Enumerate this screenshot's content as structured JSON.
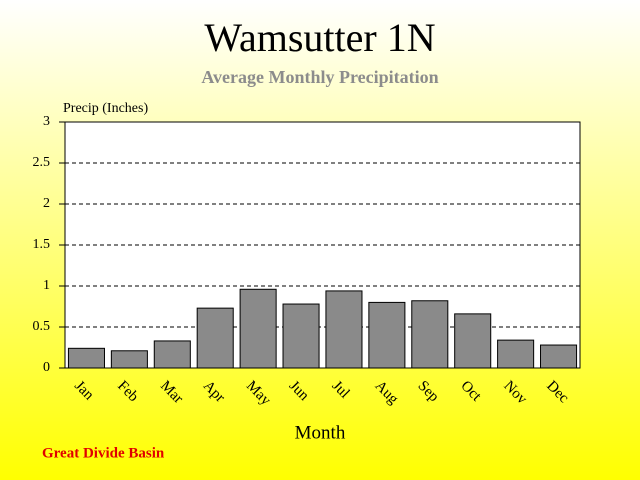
{
  "chart_data": {
    "type": "bar",
    "title": "Wamsutter 1N",
    "subtitle": "Average Monthly Precipitation",
    "y_label": "Precip (Inches)",
    "x_label": "Month",
    "annotation": "Great Divide Basin",
    "categories": [
      "Jan",
      "Feb",
      "Mar",
      "Apr",
      "May",
      "Jun",
      "Jul",
      "Aug",
      "Sep",
      "Oct",
      "Nov",
      "Dec"
    ],
    "values": [
      0.24,
      0.21,
      0.33,
      0.73,
      0.96,
      0.78,
      0.94,
      0.8,
      0.82,
      0.66,
      0.34,
      0.28
    ],
    "color": "#8a8a8a",
    "ylim": [
      0,
      3
    ],
    "yticks": [
      0,
      0.5,
      1,
      1.5,
      2,
      2.5,
      3
    ],
    "grid": true
  }
}
